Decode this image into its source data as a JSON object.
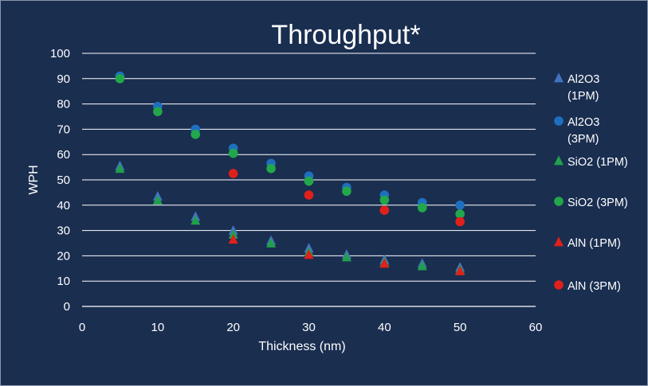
{
  "chart_data": {
    "type": "scatter",
    "title": "Throughput*",
    "xlabel": "Thickness (nm)",
    "ylabel": "WPH",
    "xlim": [
      0,
      60
    ],
    "ylim": [
      0,
      100
    ],
    "xticks": [
      0,
      10,
      20,
      30,
      40,
      50,
      60
    ],
    "yticks": [
      0,
      10,
      20,
      30,
      40,
      50,
      60,
      70,
      80,
      90,
      100
    ],
    "grid": "horizontal",
    "legend_position": "right",
    "series": [
      {
        "name": "Al2O3 (1PM)",
        "legend_lines": [
          "Al2O3",
          "(1PM)"
        ],
        "marker": "triangle",
        "color": "#4472c4",
        "x": [
          5,
          10,
          15,
          20,
          25,
          30,
          35,
          40,
          45,
          50
        ],
        "y": [
          55.5,
          43.5,
          35.5,
          30,
          26,
          23,
          20.5,
          18.5,
          17,
          15.5
        ]
      },
      {
        "name": "Al2O3 (3PM)",
        "legend_lines": [
          "Al2O3",
          "(3PM)"
        ],
        "marker": "circle",
        "color": "#1f6fc0",
        "x": [
          5,
          10,
          15,
          20,
          25,
          30,
          35,
          40,
          45,
          50
        ],
        "y": [
          91,
          79,
          70,
          62.5,
          56.5,
          51.5,
          47,
          44,
          41,
          40
        ]
      },
      {
        "name": "SiO2 (1PM)",
        "legend_lines": [
          "SiO2 (1PM)"
        ],
        "marker": "triangle",
        "color": "#21a04c",
        "x": [
          5,
          10,
          15,
          20,
          25,
          30,
          35,
          40,
          45,
          50
        ],
        "y": [
          54.5,
          42,
          34,
          28.5,
          25,
          21.5,
          19.5,
          17.5,
          16,
          14.5
        ]
      },
      {
        "name": "SiO2 (3PM)",
        "legend_lines": [
          "SiO2 (3PM)"
        ],
        "marker": "circle",
        "color": "#22a84a",
        "x": [
          5,
          10,
          15,
          20,
          25,
          30,
          35,
          40,
          45,
          50
        ],
        "y": [
          90,
          77,
          68,
          60.5,
          54.5,
          49.5,
          45.5,
          42,
          39,
          36.5
        ]
      },
      {
        "name": "AlN (1PM)",
        "legend_lines": [
          "AlN (1PM)"
        ],
        "marker": "triangle",
        "color": "#e0201b",
        "x": [
          20,
          30,
          40,
          50
        ],
        "y": [
          26.5,
          20.5,
          17,
          14
        ]
      },
      {
        "name": "AlN (3PM)",
        "legend_lines": [
          "AlN (3PM)"
        ],
        "marker": "circle",
        "color": "#e0201b",
        "x": [
          20,
          30,
          40,
          50
        ],
        "y": [
          52.5,
          44,
          38,
          33.5
        ]
      }
    ]
  }
}
